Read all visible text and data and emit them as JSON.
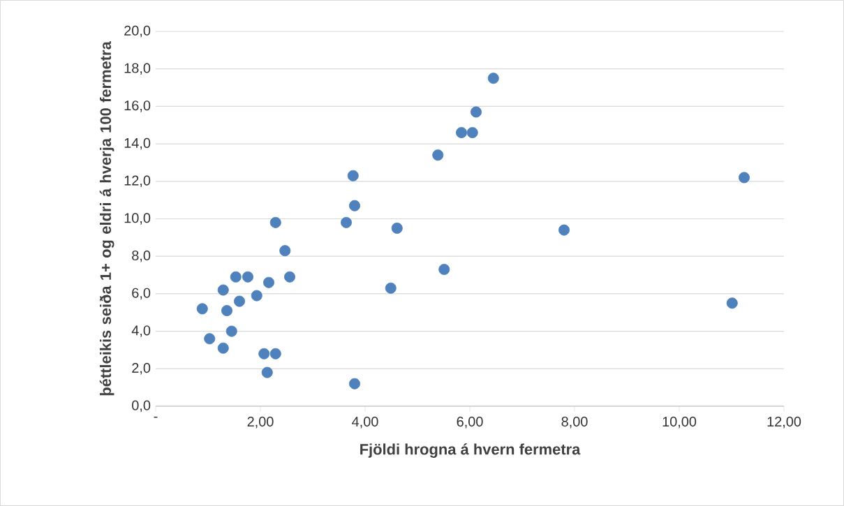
{
  "chart_data": {
    "type": "scatter",
    "xlabel": "Fjöldi hrogna á hvern fermetra",
    "ylabel": "þéttleikis seiða 1+ og eldri á hverja 100 fermetra",
    "x": [
      0.89,
      1.03,
      1.29,
      1.29,
      1.36,
      1.45,
      1.53,
      1.6,
      1.76,
      1.93,
      2.07,
      2.13,
      2.16,
      2.29,
      2.29,
      2.47,
      2.56,
      3.64,
      3.77,
      3.8,
      3.8,
      4.49,
      4.61,
      5.39,
      5.51,
      5.84,
      6.05,
      6.12,
      6.45,
      7.8,
      11.01,
      11.24
    ],
    "values": [
      5.2,
      3.6,
      3.1,
      6.2,
      5.1,
      4.0,
      6.9,
      5.6,
      6.9,
      5.9,
      2.8,
      1.8,
      6.6,
      2.8,
      9.8,
      8.3,
      6.9,
      9.8,
      12.3,
      10.7,
      1.2,
      6.3,
      9.5,
      13.4,
      7.3,
      14.6,
      14.6,
      15.7,
      17.5,
      9.4,
      5.5,
      12.2
    ],
    "color": "#4f81bd",
    "grid": "y",
    "xlim": [
      0,
      12
    ],
    "ylim": [
      0,
      20
    ],
    "xticks": [
      {
        "value": 0,
        "label": "-"
      },
      {
        "value": 2,
        "label": "2,00"
      },
      {
        "value": 4,
        "label": "4,00"
      },
      {
        "value": 6,
        "label": "6,00"
      },
      {
        "value": 8,
        "label": "8,00"
      },
      {
        "value": 10,
        "label": "10,00"
      },
      {
        "value": 12,
        "label": "12,00"
      }
    ],
    "yticks": [
      {
        "value": 0,
        "label": "0,0"
      },
      {
        "value": 2,
        "label": "2,0"
      },
      {
        "value": 4,
        "label": "4,0"
      },
      {
        "value": 6,
        "label": "6,0"
      },
      {
        "value": 8,
        "label": "8,0"
      },
      {
        "value": 10,
        "label": "10,0"
      },
      {
        "value": 12,
        "label": "12,0"
      },
      {
        "value": 14,
        "label": "14,0"
      },
      {
        "value": 16,
        "label": "16,0"
      },
      {
        "value": 18,
        "label": "18,0"
      },
      {
        "value": 20,
        "label": "20,0"
      }
    ]
  }
}
